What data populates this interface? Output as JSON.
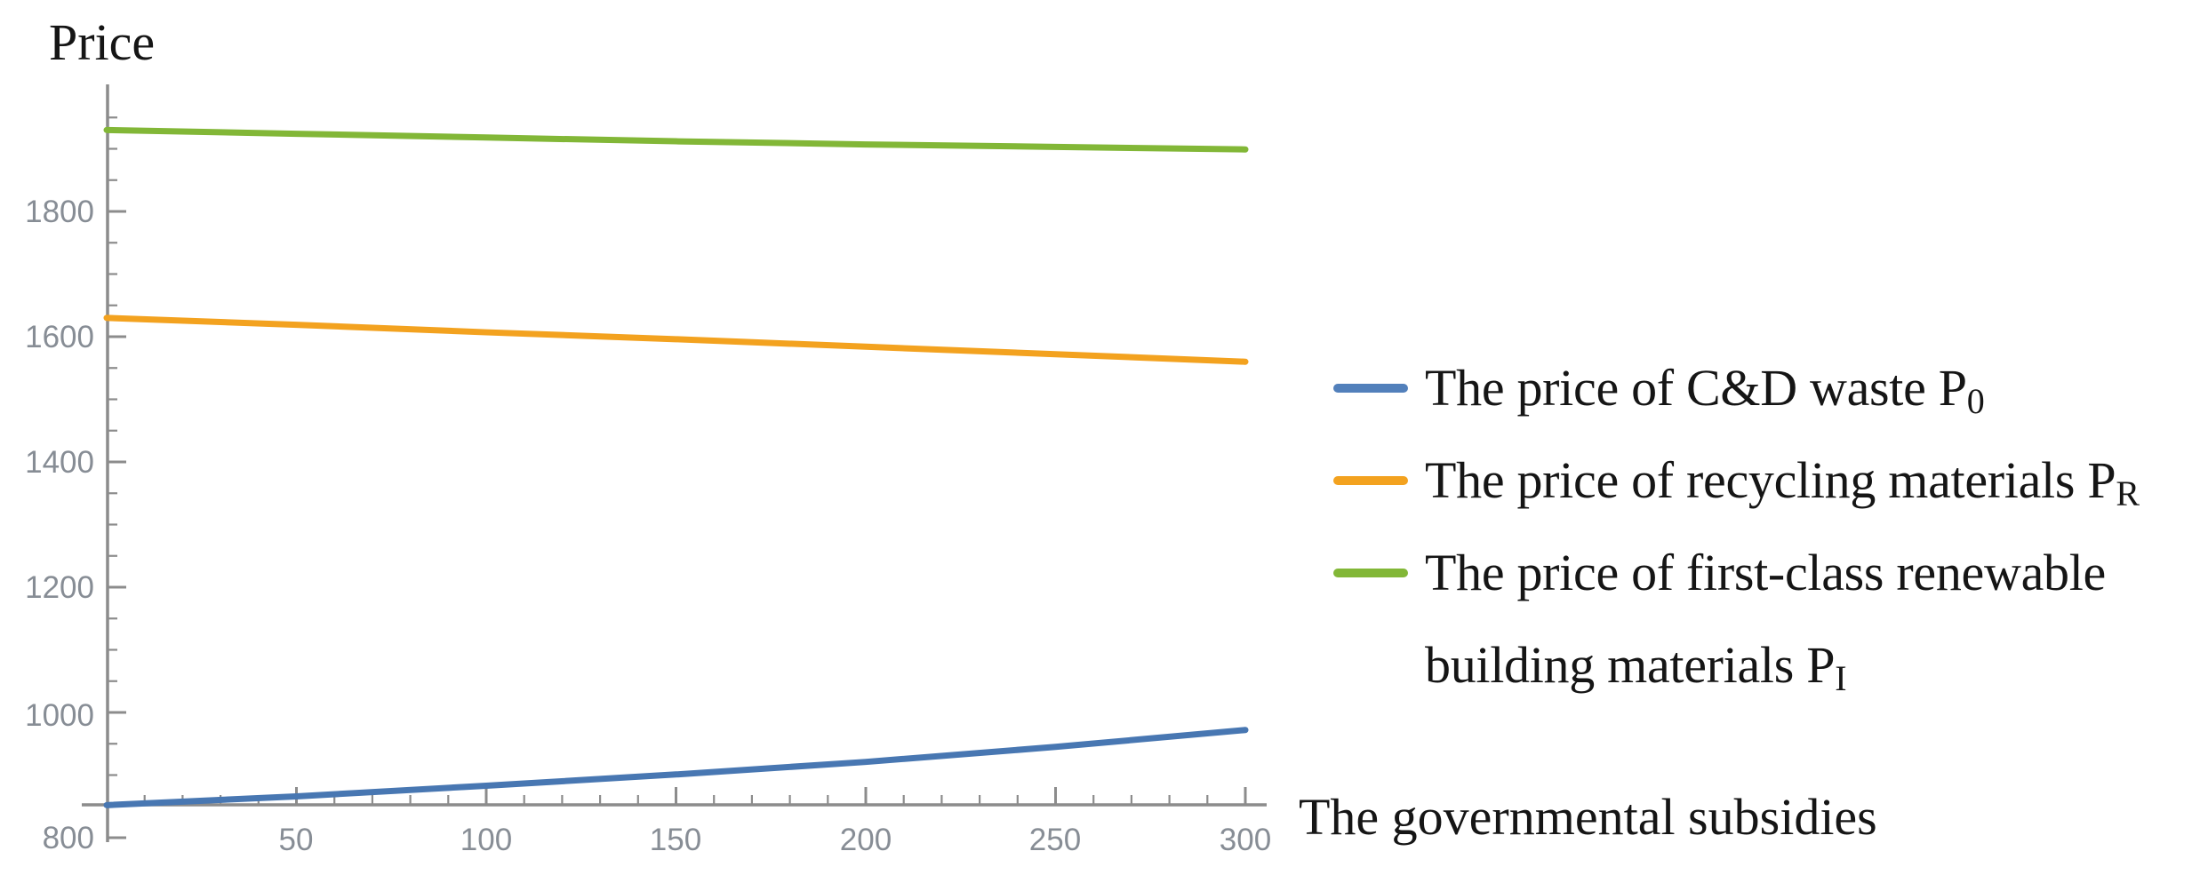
{
  "figure_background": "#ffffff",
  "labels": {
    "y_axis_title": "Price",
    "x_axis_label": "The governmental subsidies"
  },
  "legend": {
    "entries": [
      {
        "line1": "The price of C&D waste P",
        "sub": "0",
        "color": "#5280bb"
      },
      {
        "line1": "The price of recycling materials P",
        "sub": "R",
        "color": "#f3a21f"
      },
      {
        "line1": "The price of first-class renewable",
        "line2": "building materials P",
        "sub": "I",
        "color": "#82b737"
      }
    ]
  },
  "chart_data": {
    "type": "line",
    "title": "",
    "ylabel": "Price",
    "xlabel": "The governmental subsidies",
    "x": [
      0,
      50,
      100,
      150,
      200,
      250,
      300
    ],
    "series": [
      {
        "name": "The price of C&D waste P0",
        "color": "#4877b2",
        "values": [
          852,
          866,
          883,
          901,
          921,
          945,
          972
        ]
      },
      {
        "name": "The price of recycling materials PR",
        "color": "#f3a21f",
        "values": [
          1630,
          1619,
          1607,
          1596,
          1584,
          1572,
          1560
        ]
      },
      {
        "name": "The price of first-class renewable building materials PI",
        "color": "#82b737",
        "values": [
          1930,
          1924,
          1918,
          1912,
          1907,
          1903,
          1899
        ]
      }
    ],
    "x_ticks": {
      "major": [
        50,
        100,
        150,
        200,
        250,
        300
      ],
      "labels": [
        "50",
        "100",
        "150",
        "200",
        "250",
        "300"
      ],
      "minor_step": 10,
      "minor_min": 10,
      "minor_max": 300
    },
    "y_ticks": {
      "major": [
        800,
        1000,
        1200,
        1400,
        1600,
        1800
      ],
      "labels": [
        "800",
        "1000",
        "1200",
        "1400",
        "1600",
        "1800"
      ],
      "minor_step": 50,
      "minor_min": 850,
      "minor_max": 1950
    },
    "xlim": [
      0,
      305
    ],
    "ylim": [
      848,
      2003
    ],
    "grid": false,
    "legend_position": "right-outside",
    "axis_color": "#8c8c8c",
    "tick_label_color": "#878d95",
    "line_width": 7
  }
}
